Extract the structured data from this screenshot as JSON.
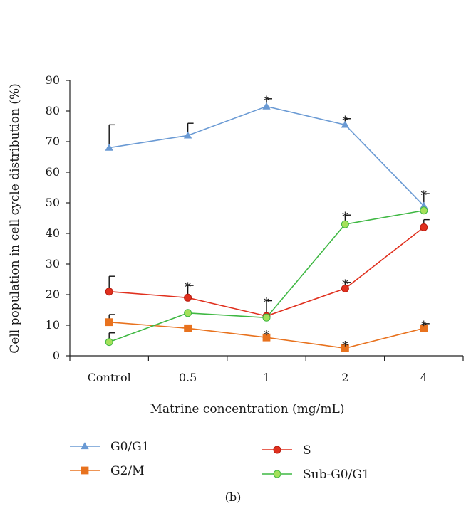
{
  "figure_label": "(b)",
  "chart_data": {
    "type": "line",
    "xlabel": "Matrine concentration (mg/mL)",
    "ylabel": "Cell population in cell cycle distribution (%)",
    "categories": [
      "Control",
      "0.5",
      "1",
      "2",
      "4"
    ],
    "ylim": [
      0,
      90
    ],
    "yticks": [
      0,
      10,
      20,
      30,
      40,
      50,
      60,
      70,
      80,
      90
    ],
    "grid": false,
    "legend_position": "bottom",
    "significance_marker": "*",
    "series": [
      {
        "name": "G0/G1",
        "color": "#6a9ad4",
        "marker": "triangle",
        "values": [
          68,
          72,
          81.5,
          75.5,
          49
        ],
        "error": [
          7.5,
          4,
          2.5,
          2,
          4
        ],
        "significant": [
          false,
          false,
          true,
          true,
          true
        ]
      },
      {
        "name": "S",
        "color": "#e0301e",
        "marker": "circle",
        "values": [
          21,
          19,
          13,
          22,
          42
        ],
        "error": [
          5,
          4,
          5,
          2,
          2.5
        ],
        "significant": [
          false,
          true,
          true,
          true,
          false
        ]
      },
      {
        "name": "G2/M",
        "color": "#e8721e",
        "marker": "square",
        "values": [
          11,
          9,
          6,
          2.5,
          9
        ],
        "error": [
          2.5,
          0,
          0,
          0,
          1.5
        ],
        "significant": [
          false,
          false,
          true,
          true,
          true
        ]
      },
      {
        "name": "Sub-G0/G1",
        "color": "#3fb843",
        "marker": "circle",
        "fill": "#a4e05a",
        "values": [
          4.5,
          14,
          12.5,
          43,
          47.5
        ],
        "error": [
          3,
          0,
          0,
          3,
          0
        ],
        "significant": [
          false,
          false,
          false,
          true,
          false
        ]
      }
    ]
  }
}
